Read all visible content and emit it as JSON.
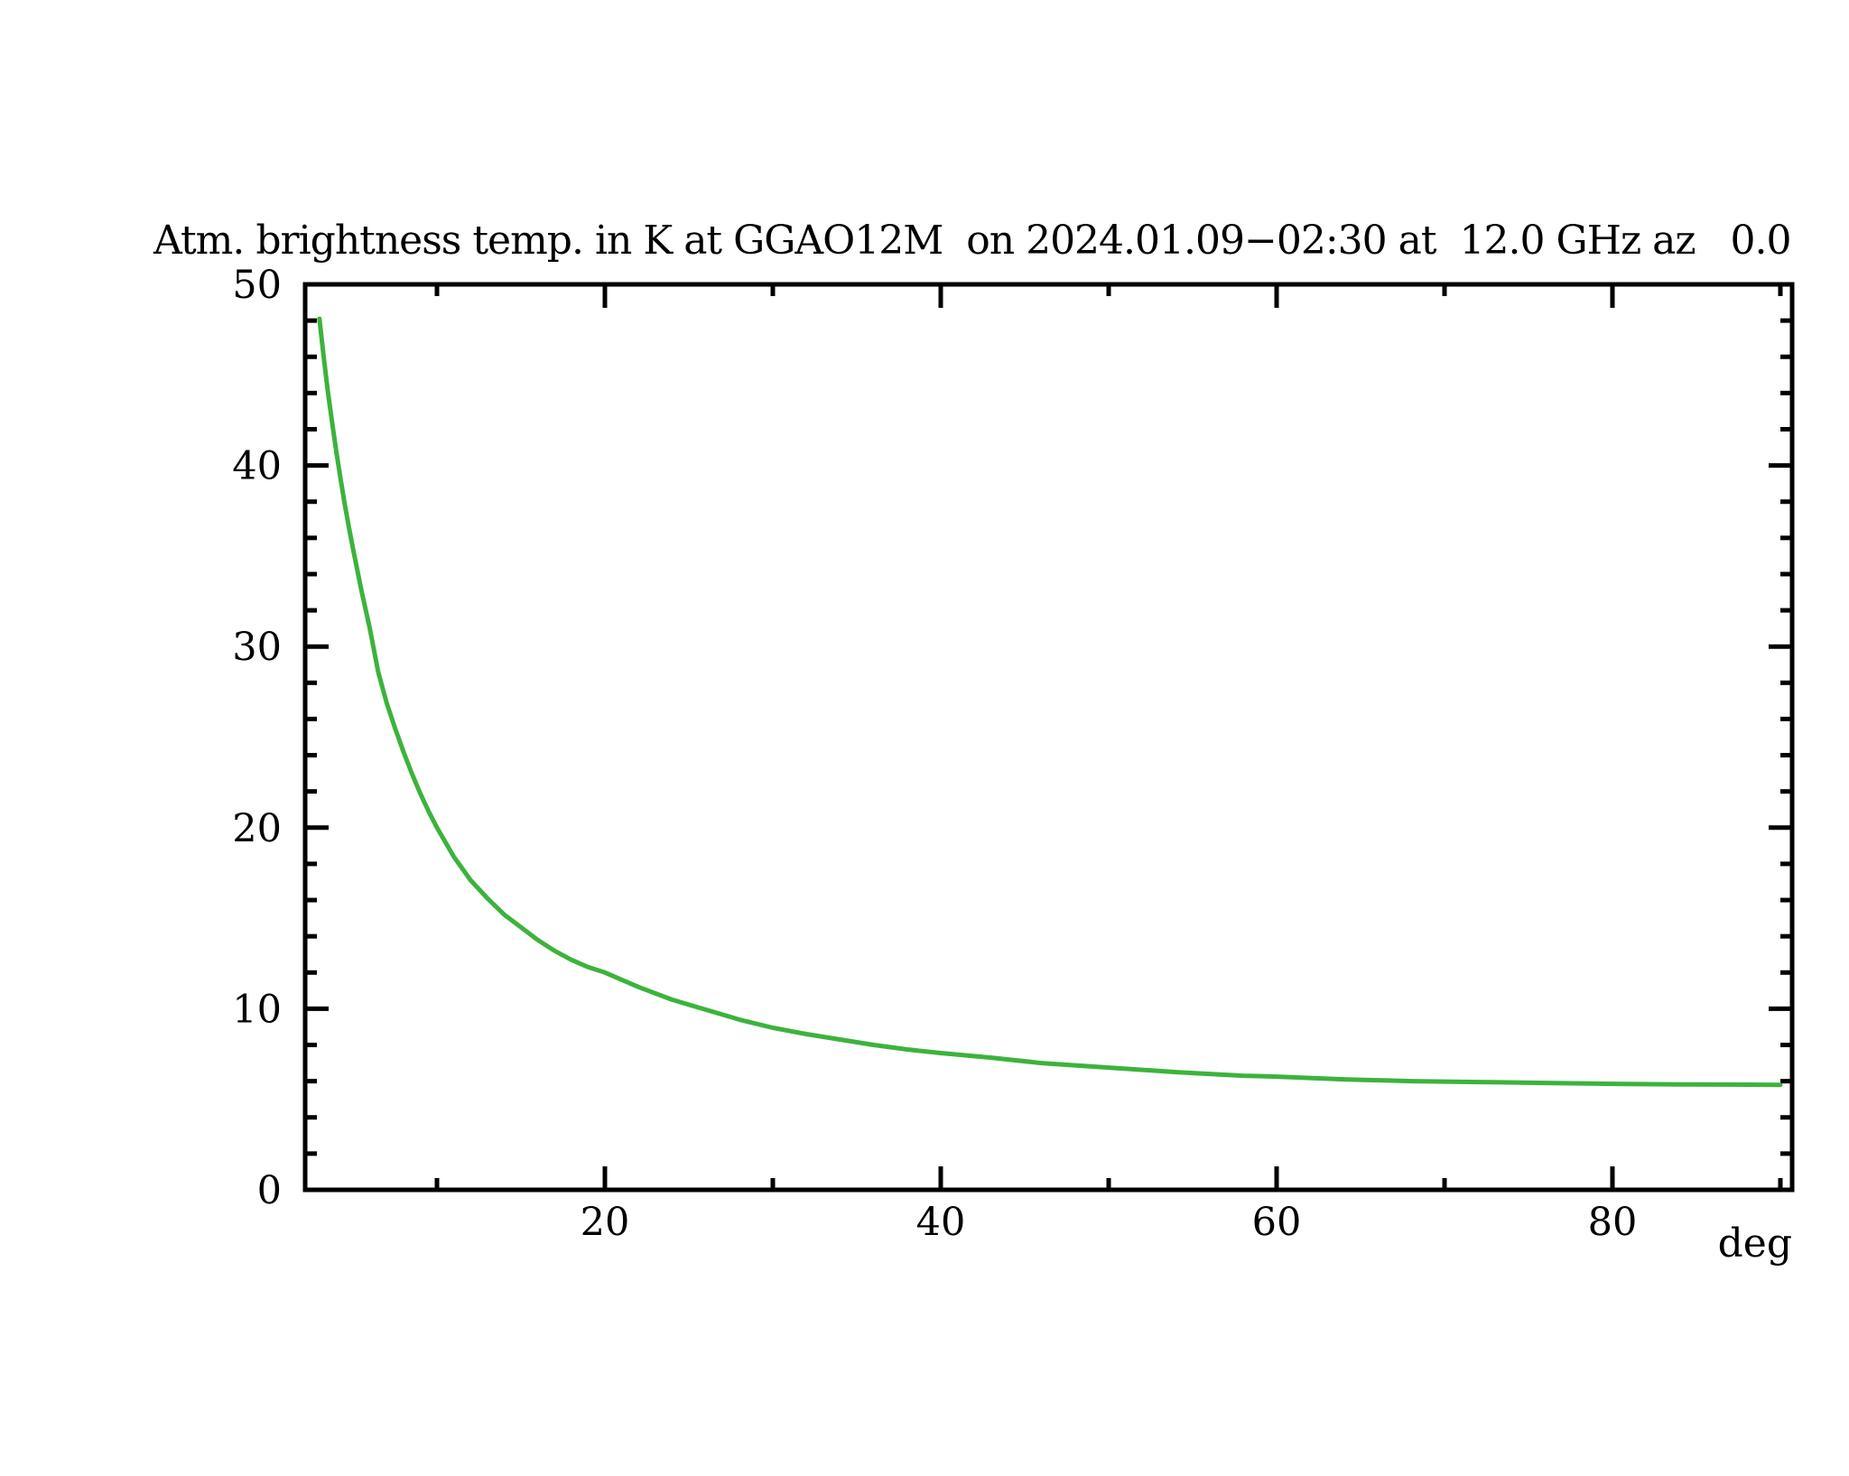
{
  "page": {
    "background_color": "#ffffff",
    "foreground_color": "#000000"
  },
  "chart_data": {
    "type": "line",
    "title": "Atm. brightness temp. in K at GGAO12M  on 2024.01.09−02:30 at  12.0 GHz az   0.0",
    "xlabel": "deg",
    "ylabel": "",
    "x_range": [
      2.15,
      90.7
    ],
    "y_range": [
      0,
      50
    ],
    "x_major_ticks": [
      20,
      40,
      60,
      80
    ],
    "x_minor_ticks": [
      10,
      30,
      50,
      70,
      90
    ],
    "y_major_ticks": [
      0,
      10,
      20,
      30,
      40,
      50
    ],
    "y_minor_step": 2,
    "grid": false,
    "legend": "none",
    "frame": "box-with-inward-ticks",
    "line_color": "#3cb33c",
    "axis_color": "#000000",
    "series": [
      {
        "name": "atmospheric-brightness-temperature",
        "x": [
          3,
          3.25,
          3.5,
          3.75,
          4,
          4.25,
          4.5,
          4.75,
          5,
          5.5,
          6,
          6.5,
          7,
          7.5,
          8,
          8.5,
          9,
          9.5,
          10,
          11,
          12,
          13,
          14,
          15,
          16,
          17,
          18,
          19,
          20,
          22,
          24,
          26,
          28,
          30,
          32,
          34,
          36,
          38,
          40,
          43,
          46,
          50,
          54,
          58,
          60,
          64,
          68,
          72,
          76,
          80,
          84,
          88,
          90
        ],
        "y": [
          48.1,
          46.0,
          44.1,
          42.4,
          40.8,
          39.3,
          37.9,
          36.6,
          35.4,
          33.1,
          31.0,
          28.6,
          26.9,
          25.5,
          24.2,
          23.0,
          21.9,
          20.9,
          20.0,
          18.4,
          17.1,
          16.1,
          15.2,
          14.5,
          13.8,
          13.2,
          12.7,
          12.3,
          12.0,
          11.2,
          10.5,
          9.95,
          9.4,
          8.95,
          8.6,
          8.3,
          8.0,
          7.75,
          7.55,
          7.3,
          7.0,
          6.75,
          6.5,
          6.3,
          6.25,
          6.1,
          6.0,
          5.95,
          5.9,
          5.85,
          5.82,
          5.81,
          5.8
        ]
      }
    ]
  }
}
